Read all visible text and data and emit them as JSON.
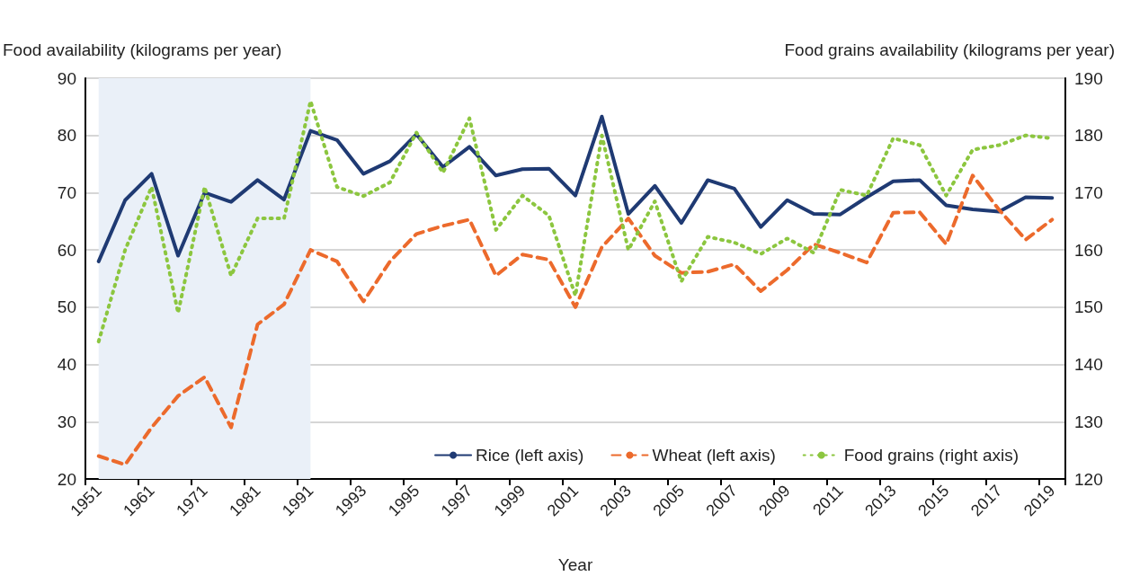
{
  "chart_data": {
    "type": "line",
    "xlabel": "Year",
    "ylabel": "Food availability (kilograms per year)",
    "y2label": "Food grains availability (kilograms per year)",
    "categories": [
      "1951",
      null,
      "1961",
      null,
      "1971",
      null,
      "1981",
      null,
      "1991",
      null,
      "1993",
      null,
      "1995",
      null,
      "1997",
      null,
      "1999",
      null,
      "2001",
      null,
      "2003",
      null,
      "2005",
      null,
      "2007",
      null,
      "2009",
      null,
      "2011",
      null,
      "2013",
      null,
      "2015",
      null,
      "2017",
      null,
      "2019"
    ],
    "series": [
      {
        "name": "Rice (left axis)",
        "color": "#1f3a73",
        "line_style": "solid",
        "values": [
          58,
          68.7,
          73.3,
          59,
          70,
          68.4,
          72.2,
          68.8,
          80.8,
          79.2,
          73.3,
          75.5,
          80.2,
          74.5,
          78,
          73,
          74.1,
          74.2,
          69.5,
          83.3,
          66.3,
          71.2,
          64.7,
          72.2,
          70.7,
          64,
          68.7,
          66.3,
          66.2,
          69.2,
          72,
          72.2,
          67.8,
          67.1,
          66.7,
          69.2,
          69.1
        ]
      },
      {
        "name": "Wheat (left axis)",
        "color": "#ec6a2c",
        "line_style": "dashed",
        "values": [
          24,
          22.5,
          29,
          34.5,
          37.8,
          29,
          47,
          50.5,
          60,
          58,
          51,
          58,
          62.8,
          64.2,
          65.3,
          55.5,
          59.2,
          58.3,
          50,
          60.5,
          65.5,
          59,
          56,
          56.2,
          57.5,
          52.8,
          56.5,
          61,
          59.5,
          57.8,
          66.5,
          66.6,
          61,
          73,
          67,
          61.8,
          65.3
        ]
      },
      {
        "name": "Food grains (right axis)",
        "color": "#8cc63f",
        "line_style": "dotted",
        "axis": "y2",
        "values": [
          144,
          160,
          171,
          149,
          171,
          155.5,
          165.5,
          165.5,
          186,
          171,
          169.4,
          171.8,
          180.5,
          173.5,
          183,
          163.5,
          169.5,
          166,
          152,
          180,
          160,
          168.5,
          154.5,
          162.3,
          161.3,
          159.3,
          162,
          159.5,
          170.5,
          169.5,
          179.5,
          178.3,
          169.5,
          177.5,
          178.3,
          180,
          179.5
        ]
      }
    ],
    "ylim": [
      20,
      90
    ],
    "yticks": [
      20,
      30,
      40,
      50,
      60,
      70,
      80,
      90
    ],
    "y2lim": [
      120,
      190
    ],
    "y2ticks": [
      120,
      130,
      140,
      150,
      160,
      170,
      180,
      190
    ],
    "bands": [
      {
        "axis": "x",
        "from": "1951",
        "to": "1991",
        "color": "#eaf0f8"
      }
    ],
    "grid": "y",
    "legend": "bottom right",
    "marker": "none"
  }
}
